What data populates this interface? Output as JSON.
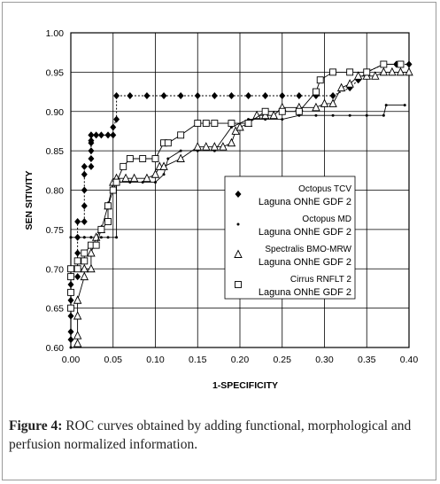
{
  "caption": {
    "label": "Figure 4:",
    "text": " ROC curves obtained by adding functional, morphological and perfusion normalized information."
  },
  "chart_data": {
    "type": "line",
    "xlabel": "1-SPECIFICITY",
    "ylabel": "SEN SITIVITY",
    "xlim": [
      0.0,
      0.4
    ],
    "ylim": [
      0.6,
      1.0
    ],
    "x_ticks": [
      "0.00",
      "0.05",
      "0.10",
      "0.15",
      "0.20",
      "0.25",
      "0.30",
      "0.35",
      "0.40"
    ],
    "y_ticks": [
      "0.60",
      "0.65",
      "0.70",
      "0.75",
      "0.80",
      "0.85",
      "0.90",
      "0.95",
      "1.00"
    ],
    "grid": true,
    "legend_position": "right-middle",
    "series": [
      {
        "name": "Octopus TCV\nLaguna ONhE GDF 2",
        "marker": "diamond",
        "x": [
          0.0,
          0.0,
          0.0,
          0.0,
          0.0,
          0.0,
          0.0,
          0.008,
          0.008,
          0.008,
          0.008,
          0.008,
          0.016,
          0.016,
          0.016,
          0.016,
          0.016,
          0.024,
          0.024,
          0.024,
          0.024,
          0.024,
          0.024,
          0.024,
          0.03,
          0.036,
          0.044,
          0.05,
          0.05,
          0.054,
          0.054,
          0.07,
          0.09,
          0.11,
          0.13,
          0.15,
          0.17,
          0.19,
          0.21,
          0.23,
          0.25,
          0.27,
          0.29,
          0.31,
          0.33,
          0.34,
          0.35,
          0.37,
          0.385,
          0.4
        ],
        "y": [
          0.61,
          0.62,
          0.64,
          0.65,
          0.66,
          0.68,
          0.69,
          0.69,
          0.7,
          0.72,
          0.74,
          0.76,
          0.76,
          0.78,
          0.8,
          0.82,
          0.83,
          0.83,
          0.84,
          0.85,
          0.86,
          0.863,
          0.87,
          0.87,
          0.87,
          0.87,
          0.87,
          0.87,
          0.88,
          0.89,
          0.92,
          0.92,
          0.92,
          0.92,
          0.92,
          0.92,
          0.92,
          0.92,
          0.92,
          0.92,
          0.92,
          0.92,
          0.92,
          0.92,
          0.93,
          0.94,
          0.95,
          0.96,
          0.96,
          0.96
        ]
      },
      {
        "name": "Octopus MD\nLaguna ONhE GDF 2",
        "marker": "dot",
        "x": [
          0.0,
          0.0,
          0.0,
          0.008,
          0.008,
          0.016,
          0.016,
          0.024,
          0.024,
          0.03,
          0.036,
          0.044,
          0.054,
          0.054,
          0.07,
          0.085,
          0.1,
          0.11,
          0.115,
          0.13,
          0.15,
          0.17,
          0.19,
          0.21,
          0.23,
          0.25,
          0.27,
          0.29,
          0.31,
          0.33,
          0.35,
          0.37,
          0.373,
          0.395
        ],
        "y": [
          0.6,
          0.74,
          0.74,
          0.74,
          0.74,
          0.74,
          0.74,
          0.74,
          0.74,
          0.74,
          0.74,
          0.74,
          0.74,
          0.81,
          0.81,
          0.81,
          0.81,
          0.82,
          0.84,
          0.85,
          0.85,
          0.85,
          0.88,
          0.89,
          0.89,
          0.89,
          0.895,
          0.895,
          0.895,
          0.895,
          0.895,
          0.895,
          0.908,
          0.908
        ]
      },
      {
        "name": "Spectralis BMO-MRW\nLaguna ONhE GDF 2",
        "marker": "triangle",
        "x": [
          0.008,
          0.008,
          0.008,
          0.008,
          0.016,
          0.016,
          0.024,
          0.024,
          0.03,
          0.036,
          0.044,
          0.05,
          0.054,
          0.065,
          0.075,
          0.09,
          0.1,
          0.105,
          0.11,
          0.13,
          0.15,
          0.16,
          0.17,
          0.18,
          0.19,
          0.195,
          0.2,
          0.21,
          0.22,
          0.23,
          0.24,
          0.25,
          0.27,
          0.29,
          0.3,
          0.31,
          0.32,
          0.33,
          0.34,
          0.35,
          0.36,
          0.37,
          0.38,
          0.39,
          0.4
        ],
        "y": [
          0.605,
          0.615,
          0.64,
          0.66,
          0.69,
          0.7,
          0.7,
          0.72,
          0.74,
          0.75,
          0.78,
          0.81,
          0.815,
          0.815,
          0.815,
          0.815,
          0.82,
          0.83,
          0.83,
          0.84,
          0.855,
          0.855,
          0.855,
          0.855,
          0.86,
          0.875,
          0.88,
          0.885,
          0.895,
          0.895,
          0.895,
          0.905,
          0.905,
          0.905,
          0.91,
          0.91,
          0.93,
          0.935,
          0.945,
          0.945,
          0.945,
          0.95,
          0.95,
          0.95,
          0.95
        ]
      },
      {
        "name": "Cirrus RNFLT 2\nLaguna ONhE GDF 2",
        "marker": "square",
        "x": [
          0.0,
          0.0,
          0.0,
          0.0,
          0.008,
          0.008,
          0.016,
          0.016,
          0.024,
          0.03,
          0.036,
          0.044,
          0.044,
          0.05,
          0.054,
          0.062,
          0.07,
          0.085,
          0.1,
          0.11,
          0.115,
          0.13,
          0.15,
          0.16,
          0.17,
          0.19,
          0.21,
          0.23,
          0.25,
          0.27,
          0.29,
          0.295,
          0.31,
          0.33,
          0.35,
          0.37,
          0.39
        ],
        "y": [
          0.65,
          0.67,
          0.69,
          0.7,
          0.7,
          0.71,
          0.71,
          0.72,
          0.73,
          0.73,
          0.75,
          0.76,
          0.78,
          0.8,
          0.81,
          0.83,
          0.84,
          0.84,
          0.84,
          0.86,
          0.86,
          0.87,
          0.885,
          0.885,
          0.885,
          0.885,
          0.885,
          0.9,
          0.9,
          0.9,
          0.925,
          0.94,
          0.95,
          0.95,
          0.95,
          0.96,
          0.96
        ]
      }
    ]
  }
}
